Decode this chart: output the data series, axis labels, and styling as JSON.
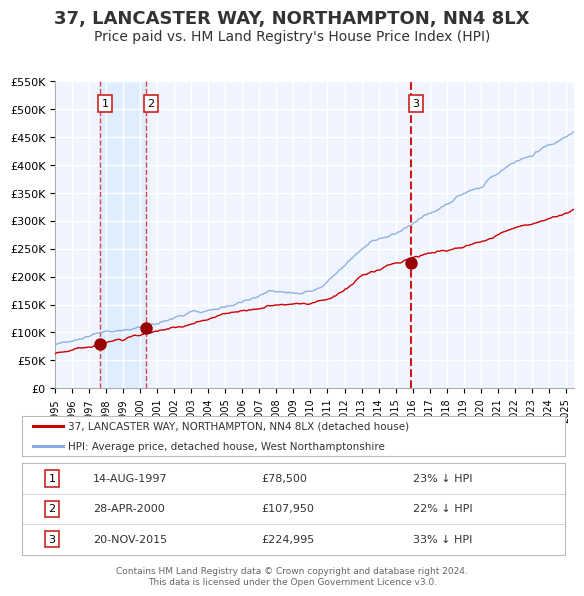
{
  "title": "37, LANCASTER WAY, NORTHAMPTON, NN4 8LX",
  "subtitle": "Price paid vs. HM Land Registry's House Price Index (HPI)",
  "title_fontsize": 13,
  "subtitle_fontsize": 10,
  "background_color": "#ffffff",
  "plot_bg_color": "#f0f4ff",
  "grid_color": "#ffffff",
  "ylim": [
    0,
    550000
  ],
  "yticks": [
    0,
    50000,
    100000,
    150000,
    200000,
    250000,
    300000,
    350000,
    400000,
    450000,
    500000,
    550000
  ],
  "xlim_start": 1995.0,
  "xlim_end": 2025.5,
  "sale1_date": 1997.617,
  "sale1_price": 78500,
  "sale1_label": "1",
  "sale2_date": 2000.327,
  "sale2_price": 107950,
  "sale2_label": "2",
  "sale3_date": 2015.895,
  "sale3_price": 224995,
  "sale3_label": "3",
  "highlight_color": "#ddeeff",
  "red_line_color": "#cc0000",
  "blue_line_color": "#88aadd",
  "marker_color": "#990000",
  "vline_color": "#cc0000",
  "num_box_color": "#cc2222",
  "legend_red_label": "37, LANCASTER WAY, NORTHAMPTON, NN4 8LX (detached house)",
  "legend_blue_label": "HPI: Average price, detached house, West Northamptonshire",
  "table_rows": [
    {
      "num": "1",
      "date": "14-AUG-1997",
      "price": "£78,500",
      "hpi": "23% ↓ HPI"
    },
    {
      "num": "2",
      "date": "28-APR-2000",
      "price": "£107,950",
      "hpi": "22% ↓ HPI"
    },
    {
      "num": "3",
      "date": "20-NOV-2015",
      "price": "£224,995",
      "hpi": "33% ↓ HPI"
    }
  ],
  "footer1": "Contains HM Land Registry data © Crown copyright and database right 2024.",
  "footer2": "This data is licensed under the Open Government Licence v3.0."
}
